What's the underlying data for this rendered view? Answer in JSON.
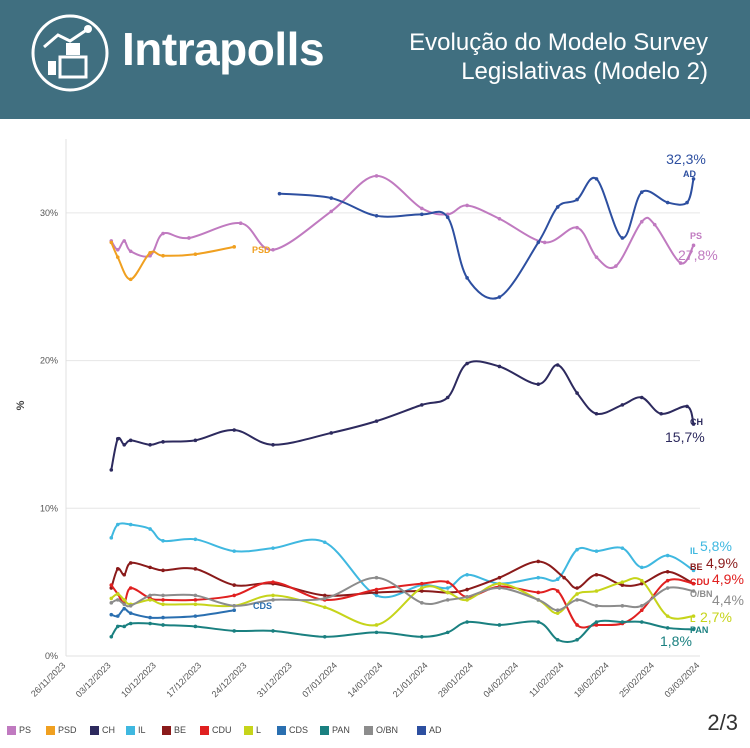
{
  "header": {
    "brand": "Intrapolls",
    "title_line1": "Evolução do Modelo Survey",
    "title_line2": "Legislativas (Modelo 2)",
    "bg_color": "#406f80"
  },
  "page_number": "2/3",
  "chart_data": {
    "type": "line",
    "ylabel": "%",
    "ylim": [
      0,
      35
    ],
    "yticks": [
      0,
      10,
      20,
      30
    ],
    "ytick_labels": [
      "0%",
      "10%",
      "20%",
      "30%"
    ],
    "xlim_days": [
      0,
      98
    ],
    "xticks": [
      {
        "day": 0,
        "label": "26/11/2023"
      },
      {
        "day": 7,
        "label": "03/12/2023"
      },
      {
        "day": 14,
        "label": "10/12/2023"
      },
      {
        "day": 21,
        "label": "17/12/2023"
      },
      {
        "day": 28,
        "label": "24/12/2023"
      },
      {
        "day": 35,
        "label": "31/12/2023"
      },
      {
        "day": 42,
        "label": "07/01/2024"
      },
      {
        "day": 49,
        "label": "14/01/2024"
      },
      {
        "day": 56,
        "label": "21/01/2024"
      },
      {
        "day": 63,
        "label": "28/01/2024"
      },
      {
        "day": 70,
        "label": "04/02/2024"
      },
      {
        "day": 77,
        "label": "11/02/2024"
      },
      {
        "day": 84,
        "label": "18/02/2024"
      },
      {
        "day": 91,
        "label": "25/02/2024"
      },
      {
        "day": 98,
        "label": "03/03/2024"
      }
    ],
    "series": [
      {
        "name": "PS",
        "color": "#c07ac0",
        "end_label": "PS",
        "end_value": "27,8%",
        "points": [
          [
            7,
            28.1
          ],
          [
            8,
            27.5
          ],
          [
            9,
            28.1
          ],
          [
            10,
            27.4
          ],
          [
            13,
            27.1
          ],
          [
            15,
            28.6
          ],
          [
            19,
            28.3
          ],
          [
            27,
            29.3
          ],
          [
            32,
            27.5
          ],
          [
            41,
            30.1
          ],
          [
            48,
            32.5
          ],
          [
            55,
            30.3
          ],
          [
            59,
            29.9
          ],
          [
            62,
            30.5
          ],
          [
            67,
            29.6
          ],
          [
            74,
            28
          ],
          [
            79,
            29
          ],
          [
            82,
            27
          ],
          [
            85,
            26.4
          ],
          [
            89,
            29.4
          ],
          [
            91,
            29.2
          ],
          [
            95,
            26.6
          ],
          [
            97,
            27.8
          ]
        ]
      },
      {
        "name": "PSD",
        "color": "#f0a020",
        "end_label": "PSD",
        "end_value": "",
        "points": [
          [
            7,
            28
          ],
          [
            8,
            27
          ],
          [
            10,
            25.5
          ],
          [
            13,
            27.3
          ],
          [
            15,
            27.1
          ],
          [
            20,
            27.2
          ],
          [
            26,
            27.7
          ]
        ]
      },
      {
        "name": "CH",
        "color": "#2d2a5e",
        "end_label": "CH",
        "end_value": "15,7%",
        "points": [
          [
            7,
            12.6
          ],
          [
            8,
            14.7
          ],
          [
            9,
            14.3
          ],
          [
            10,
            14.6
          ],
          [
            13,
            14.3
          ],
          [
            15,
            14.5
          ],
          [
            20,
            14.6
          ],
          [
            26,
            15.3
          ],
          [
            32,
            14.3
          ],
          [
            41,
            15.1
          ],
          [
            48,
            15.9
          ],
          [
            55,
            17
          ],
          [
            59,
            17.5
          ],
          [
            62,
            19.8
          ],
          [
            67,
            19.6
          ],
          [
            73,
            18.4
          ],
          [
            76,
            19.7
          ],
          [
            79,
            17.8
          ],
          [
            82,
            16.4
          ],
          [
            86,
            17
          ],
          [
            89,
            17.5
          ],
          [
            92,
            16.4
          ],
          [
            96,
            16.9
          ],
          [
            97,
            15.7
          ]
        ]
      },
      {
        "name": "IL",
        "color": "#3fb8e0",
        "end_label": "IL",
        "end_value": "5,8%",
        "points": [
          [
            7,
            8
          ],
          [
            8,
            8.9
          ],
          [
            10,
            8.9
          ],
          [
            13,
            8.6
          ],
          [
            15,
            7.8
          ],
          [
            20,
            7.9
          ],
          [
            26,
            7.1
          ],
          [
            32,
            7.3
          ],
          [
            40,
            7.7
          ],
          [
            48,
            4.1
          ],
          [
            55,
            4.8
          ],
          [
            59,
            4.6
          ],
          [
            62,
            5.5
          ],
          [
            67,
            4.9
          ],
          [
            73,
            5.3
          ],
          [
            76,
            5.2
          ],
          [
            79,
            7.2
          ],
          [
            82,
            7.1
          ],
          [
            86,
            7.3
          ],
          [
            89,
            6
          ],
          [
            93,
            6.8
          ],
          [
            97,
            5.8
          ]
        ]
      },
      {
        "name": "BE",
        "color": "#8a1a1a",
        "end_label": "BE",
        "end_value": "4,9%",
        "points": [
          [
            7,
            4.6
          ],
          [
            8,
            5.9
          ],
          [
            9,
            5.5
          ],
          [
            10,
            6.3
          ],
          [
            13,
            6
          ],
          [
            15,
            5.8
          ],
          [
            20,
            5.9
          ],
          [
            26,
            4.8
          ],
          [
            32,
            4.9
          ],
          [
            40,
            4.1
          ],
          [
            48,
            4.3
          ],
          [
            55,
            4.4
          ],
          [
            59,
            4.3
          ],
          [
            62,
            4.5
          ],
          [
            67,
            5.3
          ],
          [
            73,
            6.4
          ],
          [
            77,
            5.3
          ],
          [
            79,
            4.6
          ],
          [
            82,
            5.5
          ],
          [
            86,
            4.8
          ],
          [
            89,
            4.9
          ],
          [
            93,
            5.7
          ],
          [
            97,
            4.9
          ]
        ]
      },
      {
        "name": "CDU",
        "color": "#e02020",
        "end_label": "CDU",
        "end_value": "4,9%",
        "points": [
          [
            7,
            4.8
          ],
          [
            8,
            4.2
          ],
          [
            9,
            3.6
          ],
          [
            10,
            4.6
          ],
          [
            13,
            3.9
          ],
          [
            15,
            3.8
          ],
          [
            20,
            3.8
          ],
          [
            26,
            4.1
          ],
          [
            32,
            5
          ],
          [
            40,
            3.8
          ],
          [
            48,
            4.5
          ],
          [
            55,
            4.9
          ],
          [
            59,
            5
          ],
          [
            62,
            4
          ],
          [
            67,
            4.7
          ],
          [
            73,
            4.3
          ],
          [
            76,
            4.4
          ],
          [
            79,
            2.1
          ],
          [
            82,
            2.1
          ],
          [
            86,
            2.2
          ],
          [
            89,
            3.1
          ],
          [
            93,
            5.1
          ],
          [
            97,
            4.9
          ]
        ]
      },
      {
        "name": "L",
        "color": "#c6d41a",
        "end_label": "L",
        "end_value": "2,7%",
        "points": [
          [
            7,
            3.9
          ],
          [
            8,
            4.2
          ],
          [
            9,
            3.8
          ],
          [
            10,
            3.5
          ],
          [
            13,
            3.8
          ],
          [
            15,
            3.5
          ],
          [
            20,
            3.5
          ],
          [
            26,
            3.4
          ],
          [
            32,
            4.1
          ],
          [
            40,
            3.3
          ],
          [
            48,
            2.1
          ],
          [
            55,
            4.6
          ],
          [
            59,
            4.3
          ],
          [
            62,
            3.8
          ],
          [
            67,
            4.9
          ],
          [
            73,
            3.8
          ],
          [
            76,
            2.9
          ],
          [
            79,
            4.2
          ],
          [
            82,
            4.4
          ],
          [
            86,
            5
          ],
          [
            89,
            5.1
          ],
          [
            93,
            2.7
          ],
          [
            97,
            2.7
          ]
        ]
      },
      {
        "name": "CDS",
        "color": "#2a6fb0",
        "end_label": "CDS",
        "end_value": "",
        "points": [
          [
            7,
            2.8
          ],
          [
            8,
            2.7
          ],
          [
            9,
            3.2
          ],
          [
            10,
            2.9
          ],
          [
            13,
            2.6
          ],
          [
            15,
            2.6
          ],
          [
            20,
            2.7
          ],
          [
            26,
            3.1
          ]
        ]
      },
      {
        "name": "PAN",
        "color": "#1a8080",
        "end_label": "PAN",
        "end_value": "1,8%",
        "points": [
          [
            7,
            1.3
          ],
          [
            8,
            2
          ],
          [
            9,
            2
          ],
          [
            10,
            2.2
          ],
          [
            13,
            2.2
          ],
          [
            15,
            2.1
          ],
          [
            20,
            2
          ],
          [
            26,
            1.7
          ],
          [
            32,
            1.7
          ],
          [
            40,
            1.3
          ],
          [
            48,
            1.6
          ],
          [
            55,
            1.3
          ],
          [
            59,
            1.6
          ],
          [
            62,
            2.3
          ],
          [
            67,
            2.1
          ],
          [
            73,
            2.3
          ],
          [
            76,
            1.1
          ],
          [
            79,
            1.1
          ],
          [
            82,
            2.3
          ],
          [
            86,
            2.3
          ],
          [
            89,
            2.3
          ],
          [
            93,
            1.9
          ],
          [
            97,
            1.8
          ]
        ]
      },
      {
        "name": "O/BN",
        "color": "#8c8c8c",
        "end_label": "O/BN",
        "end_value": "4,4%",
        "points": [
          [
            7,
            3.6
          ],
          [
            8,
            3.8
          ],
          [
            9,
            3.5
          ],
          [
            10,
            3.4
          ],
          [
            13,
            4.1
          ],
          [
            15,
            4.1
          ],
          [
            20,
            4.1
          ],
          [
            26,
            3.4
          ],
          [
            32,
            3.8
          ],
          [
            40,
            3.9
          ],
          [
            48,
            5.3
          ],
          [
            55,
            3.6
          ],
          [
            59,
            3.8
          ],
          [
            62,
            4
          ],
          [
            67,
            4.6
          ],
          [
            73,
            3.8
          ],
          [
            76,
            3.1
          ],
          [
            79,
            3.8
          ],
          [
            82,
            3.4
          ],
          [
            86,
            3.4
          ],
          [
            89,
            3.4
          ],
          [
            93,
            4.6
          ],
          [
            97,
            4.4
          ]
        ]
      },
      {
        "name": "AD",
        "color": "#2d4fa0",
        "end_label": "AD",
        "end_value": "32,3%",
        "points": [
          [
            33,
            31.3
          ],
          [
            41,
            31
          ],
          [
            48,
            29.8
          ],
          [
            55,
            29.9
          ],
          [
            59,
            29.7
          ],
          [
            62,
            25.6
          ],
          [
            67,
            24.3
          ],
          [
            73,
            28
          ],
          [
            76,
            30.4
          ],
          [
            79,
            30.9
          ],
          [
            82,
            32.3
          ],
          [
            86,
            28.3
          ],
          [
            89,
            31.4
          ],
          [
            93,
            30.7
          ],
          [
            96,
            30.7
          ],
          [
            97,
            32.3
          ]
        ]
      }
    ],
    "legend": [
      {
        "name": "PS",
        "color": "#c07ac0"
      },
      {
        "name": "PSD",
        "color": "#f0a020"
      },
      {
        "name": "CH",
        "color": "#2d2a5e"
      },
      {
        "name": "IL",
        "color": "#3fb8e0"
      },
      {
        "name": "BE",
        "color": "#8a1a1a"
      },
      {
        "name": "CDU",
        "color": "#e02020"
      },
      {
        "name": "L",
        "color": "#c6d41a"
      },
      {
        "name": "CDS",
        "color": "#2a6fb0"
      },
      {
        "name": "PAN",
        "color": "#1a8080"
      },
      {
        "name": "O/BN",
        "color": "#8c8c8c"
      },
      {
        "name": "AD",
        "color": "#2d4fa0"
      }
    ]
  }
}
